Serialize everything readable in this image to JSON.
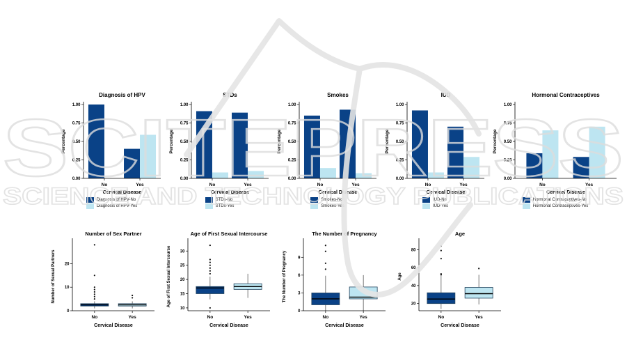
{
  "watermark": {
    "big_text": "SCITEPRESS",
    "band_text": "SCIENCE AND TECHNOLOGY PUBLICATIONS",
    "outline_color": "#dcdcdc",
    "swoosh_color": "#e4e4e4"
  },
  "palette": {
    "no_color": "#0a4287",
    "yes_color": "#bde5f1"
  },
  "chart_data": [
    {
      "type": "bar",
      "title": "Diagnosis of HPV",
      "xlabel": "Cervical Disease",
      "ylabel": "Percentage",
      "categories": [
        "No",
        "Yes"
      ],
      "ytick_labels": [
        "0.00",
        "0.25",
        "0.50",
        "0.75",
        "1.00"
      ],
      "ylim": [
        0,
        1
      ],
      "legend_position": "bottom",
      "series": [
        {
          "name": "Diagnosis of HPV-No",
          "color": "no",
          "values": [
            1.0,
            0.4
          ]
        },
        {
          "name": "Diagnosis of HPV-Yes",
          "color": "yes",
          "values": [
            0.0,
            0.59
          ]
        }
      ]
    },
    {
      "type": "bar",
      "title": "STDs",
      "xlabel": "Cervical Disease",
      "ylabel": "Percentage",
      "categories": [
        "No",
        "Yes"
      ],
      "ytick_labels": [
        "0.00",
        "0.25",
        "0.50",
        "0.75",
        "1.00"
      ],
      "ylim": [
        0,
        1
      ],
      "legend_position": "bottom",
      "series": [
        {
          "name": "STDs-No",
          "color": "no",
          "values": [
            0.91,
            0.89
          ]
        },
        {
          "name": "STDs-Yes",
          "color": "yes",
          "values": [
            0.08,
            0.1
          ]
        }
      ]
    },
    {
      "type": "bar",
      "title": "Smokes",
      "xlabel": "Cervical Disease",
      "ylabel": "Percentage",
      "categories": [
        "No",
        "Yes"
      ],
      "ytick_labels": [
        "0.00",
        "0.25",
        "0.50",
        "0.75",
        "1.00"
      ],
      "ylim": [
        0,
        1
      ],
      "legend_position": "bottom",
      "series": [
        {
          "name": "Smokes-No",
          "color": "no",
          "values": [
            0.85,
            0.93
          ]
        },
        {
          "name": "Smokes-Yes",
          "color": "yes",
          "values": [
            0.14,
            0.07
          ]
        }
      ]
    },
    {
      "type": "bar",
      "title": "IUD",
      "xlabel": "Cervical Disease",
      "ylabel": "Percentage",
      "categories": [
        "No",
        "Yes"
      ],
      "ytick_labels": [
        "0.00",
        "0.25",
        "0.50",
        "0.75",
        "1.00"
      ],
      "ylim": [
        0,
        1
      ],
      "legend_position": "bottom",
      "series": [
        {
          "name": "IUD-No",
          "color": "no",
          "values": [
            0.92,
            0.7
          ]
        },
        {
          "name": "IUD-Yes",
          "color": "yes",
          "values": [
            0.08,
            0.29
          ]
        }
      ]
    },
    {
      "type": "bar",
      "title": "Hormonal Contraceptives",
      "xlabel": "Cervical Disease",
      "ylabel": "Percentage",
      "categories": [
        "No",
        "Yes"
      ],
      "ytick_labels": [
        "0.00",
        "0.25",
        "0.50",
        "0.75",
        "1.00"
      ],
      "ylim": [
        0,
        1
      ],
      "legend_position": "bottom",
      "series": [
        {
          "name": "Hormonal Contraceptives-No",
          "color": "no",
          "values": [
            0.34,
            0.29
          ]
        },
        {
          "name": "Hormonal Contraceptives-Yes",
          "color": "yes",
          "values": [
            0.65,
            0.7
          ]
        }
      ]
    },
    {
      "type": "boxplot",
      "title": "Number of Sex Partner",
      "xlabel": "Cervical Disease",
      "ylabel": "Number of Sexual Partners",
      "categories": [
        "No",
        "Yes"
      ],
      "yticks": [
        0,
        10,
        20
      ],
      "ylim": [
        0,
        29
      ],
      "boxes": [
        {
          "label": "No",
          "color": "no",
          "whisker_low": 1,
          "q1": 2,
          "median": 2.5,
          "q3": 3,
          "whisker_high": 4,
          "outliers": [
            5,
            6,
            7,
            8,
            9,
            10,
            15,
            28
          ]
        },
        {
          "label": "Yes",
          "color": "yes",
          "whisker_low": 1,
          "q1": 2,
          "median": 2.5,
          "q3": 3,
          "whisker_high": 4,
          "outliers": [
            5.5,
            6.5
          ]
        }
      ]
    },
    {
      "type": "boxplot",
      "title": "Age of First Sexual Intercourse",
      "xlabel": "Cervical Disease",
      "ylabel": "Age of First Sexual Intercourse",
      "categories": [
        "No",
        "Yes"
      ],
      "yticks": [
        10,
        15,
        20,
        25,
        30
      ],
      "ylim": [
        9,
        33
      ],
      "boxes": [
        {
          "label": "No",
          "color": "no",
          "whisker_low": 13,
          "q1": 15,
          "median": 17,
          "q3": 17.5,
          "whisker_high": 21,
          "outliers": [
            10,
            22,
            23,
            24,
            25,
            26,
            27,
            32
          ]
        },
        {
          "label": "Yes",
          "color": "yes",
          "whisker_low": 13.5,
          "q1": 16.5,
          "median": 17.5,
          "q3": 18.5,
          "whisker_high": 22,
          "outliers": []
        }
      ]
    },
    {
      "type": "boxplot",
      "title": "The Number of Pregnancy",
      "xlabel": "Cervical Disease",
      "ylabel": "The Number of Pregnancy",
      "categories": [
        "No",
        "Yes"
      ],
      "yticks": [
        0,
        3,
        6,
        9
      ],
      "ylim": [
        0,
        11.5
      ],
      "boxes": [
        {
          "label": "No",
          "color": "no",
          "whisker_low": 0,
          "q1": 1,
          "median": 2,
          "q3": 3,
          "whisker_high": 5.9,
          "outliers": [
            7,
            8,
            10,
            11
          ]
        },
        {
          "label": "Yes",
          "color": "yes",
          "whisker_low": 0,
          "q1": 2,
          "median": 2.3,
          "q3": 4,
          "whisker_high": 6,
          "outliers": []
        }
      ]
    },
    {
      "type": "boxplot",
      "title": "Age",
      "xlabel": "Cervical Disease",
      "ylabel": "Age",
      "categories": [
        "No",
        "Yes"
      ],
      "yticks": [
        20,
        40,
        60,
        80
      ],
      "ylim": [
        12,
        88
      ],
      "boxes": [
        {
          "label": "No",
          "color": "no",
          "whisker_low": 14,
          "q1": 20,
          "median": 25,
          "q3": 32,
          "whisker_high": 51,
          "outliers": [
            52,
            53,
            70,
            79,
            84
          ]
        },
        {
          "label": "Yes",
          "color": "yes",
          "whisker_low": 19,
          "q1": 26,
          "median": 31,
          "q3": 38,
          "whisker_high": 52,
          "outliers": [
            59
          ]
        }
      ]
    }
  ]
}
